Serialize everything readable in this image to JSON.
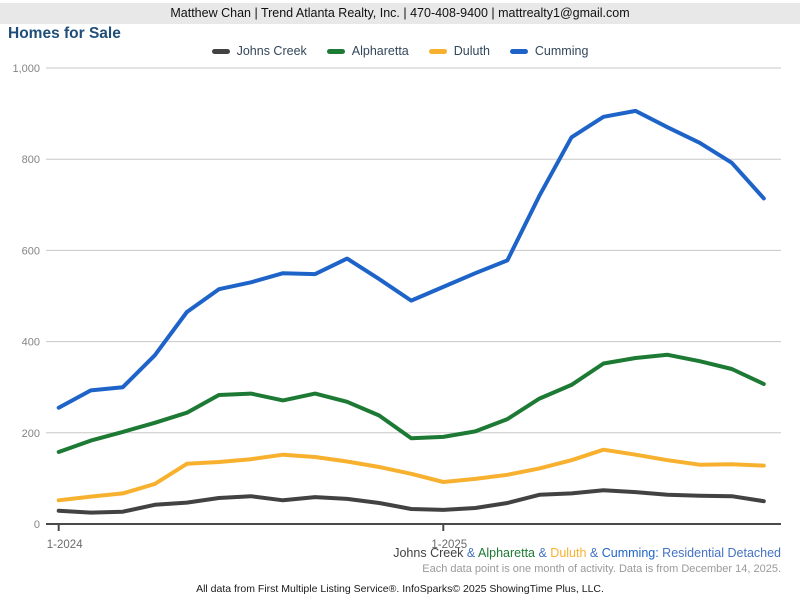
{
  "header": {
    "contact_line": "Matthew Chan | Trend Atlanta Realty, Inc. | 470-408-9400 | mattrealty1@gmail.com"
  },
  "title": "Homes for Sale",
  "chart_data": {
    "type": "line",
    "title": "Homes for Sale",
    "categories": [
      "1-2024",
      "2-2024",
      "3-2024",
      "4-2024",
      "5-2024",
      "6-2024",
      "7-2024",
      "8-2024",
      "9-2024",
      "10-2024",
      "11-2024",
      "12-2024",
      "1-2025",
      "2-2025",
      "3-2025",
      "4-2025",
      "5-2025",
      "6-2025",
      "7-2025",
      "8-2025",
      "9-2025",
      "10-2025",
      "11-2025"
    ],
    "series": [
      {
        "name": "Johns Creek",
        "color": "#424242",
        "values": [
          29,
          25,
          27,
          42,
          47,
          57,
          61,
          52,
          59,
          55,
          46,
          33,
          31,
          35,
          46,
          64,
          67,
          74,
          70,
          64,
          62,
          61,
          50
        ]
      },
      {
        "name": "Alpharetta",
        "color": "#1d7a34",
        "values": [
          158,
          183,
          202,
          222,
          244,
          283,
          286,
          271,
          286,
          268,
          238,
          188,
          191,
          203,
          230,
          275,
          305,
          352,
          364,
          371,
          357,
          340,
          307
        ]
      },
      {
        "name": "Duluth",
        "color": "#f7b12f",
        "values": [
          52,
          60,
          67,
          88,
          132,
          136,
          142,
          152,
          147,
          137,
          125,
          110,
          92,
          99,
          108,
          122,
          140,
          163,
          152,
          140,
          130,
          131,
          128
        ]
      },
      {
        "name": "Cumming",
        "color": "#1e64c8",
        "values": [
          255,
          293,
          300,
          370,
          465,
          515,
          530,
          550,
          548,
          582,
          537,
          490,
          520,
          550,
          578,
          720,
          848,
          893,
          906,
          870,
          836,
          792,
          714
        ]
      }
    ],
    "ylim": [
      0,
      1000
    ],
    "y_ticks": [
      0,
      200,
      400,
      600,
      800,
      1000
    ],
    "y_tick_labels": [
      "0",
      "200",
      "400",
      "600",
      "800",
      "1,000"
    ],
    "x_ticks": [
      {
        "index": 0,
        "label": "1-2024"
      },
      {
        "index": 12,
        "label": "1-2025"
      }
    ],
    "grid": true,
    "legend_position": "top",
    "xlabel": "",
    "ylabel": ""
  },
  "footer": {
    "series_line": {
      "parts": [
        {
          "text": "Johns Creek",
          "color": "#424242"
        },
        {
          "text": " & ",
          "color": "#4472c4"
        },
        {
          "text": "Alpharetta",
          "color": "#1d7a34"
        },
        {
          "text": " & ",
          "color": "#4472c4"
        },
        {
          "text": "Duluth",
          "color": "#f7b12f"
        },
        {
          "text": " & ",
          "color": "#4472c4"
        },
        {
          "text": "Cumming:",
          "color": "#1e64c8"
        },
        {
          "text": " Residential Detached",
          "color": "#4472c4"
        }
      ]
    },
    "note_line": "Each data point is one month of activity. Data is from December 14, 2025.",
    "attribution": "All data from First Multiple Listing Service®. InfoSparks© 2025 ShowingTime Plus, LLC."
  }
}
